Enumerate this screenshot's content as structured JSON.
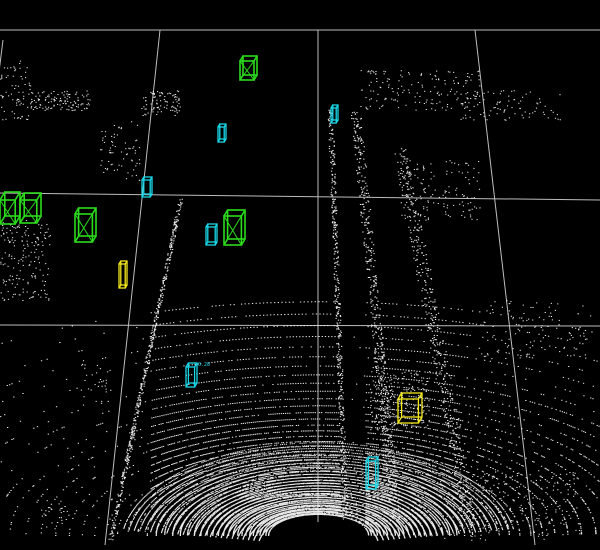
{
  "scene": {
    "background_color": "#000000",
    "grid_color": "#bdbdbd",
    "point_color": "#e8e8e8"
  },
  "class_colors": {
    "car": "#2bdc1b",
    "pedestrian": "#18d8e8",
    "cyclist": "#f2e81c"
  },
  "detections": [
    {
      "id": "det-1",
      "cls": "car",
      "label": "",
      "score_text": ""
    },
    {
      "id": "det-2",
      "cls": "car",
      "label": "",
      "score_text": ""
    },
    {
      "id": "det-3",
      "cls": "car",
      "label": "",
      "score_text": ""
    },
    {
      "id": "det-4",
      "cls": "car",
      "label": "",
      "score_text": ""
    },
    {
      "id": "det-5",
      "cls": "car",
      "label": "",
      "score_text": ""
    },
    {
      "id": "det-6",
      "cls": "pedestrian",
      "label": "",
      "score_text": ""
    },
    {
      "id": "det-7",
      "cls": "pedestrian",
      "label": "",
      "score_text": ""
    },
    {
      "id": "det-8",
      "cls": "pedestrian",
      "label": "",
      "score_text": ""
    },
    {
      "id": "det-9",
      "cls": "pedestrian",
      "label": "",
      "score_text": ""
    },
    {
      "id": "det-10",
      "cls": "pedestrian",
      "label": "",
      "score_text": "0.28"
    },
    {
      "id": "det-11",
      "cls": "pedestrian",
      "label": "",
      "score_text": ""
    },
    {
      "id": "det-12",
      "cls": "cyclist",
      "label": "",
      "score_text": ""
    },
    {
      "id": "det-13",
      "cls": "cyclist",
      "label": "",
      "score_text": ""
    }
  ]
}
